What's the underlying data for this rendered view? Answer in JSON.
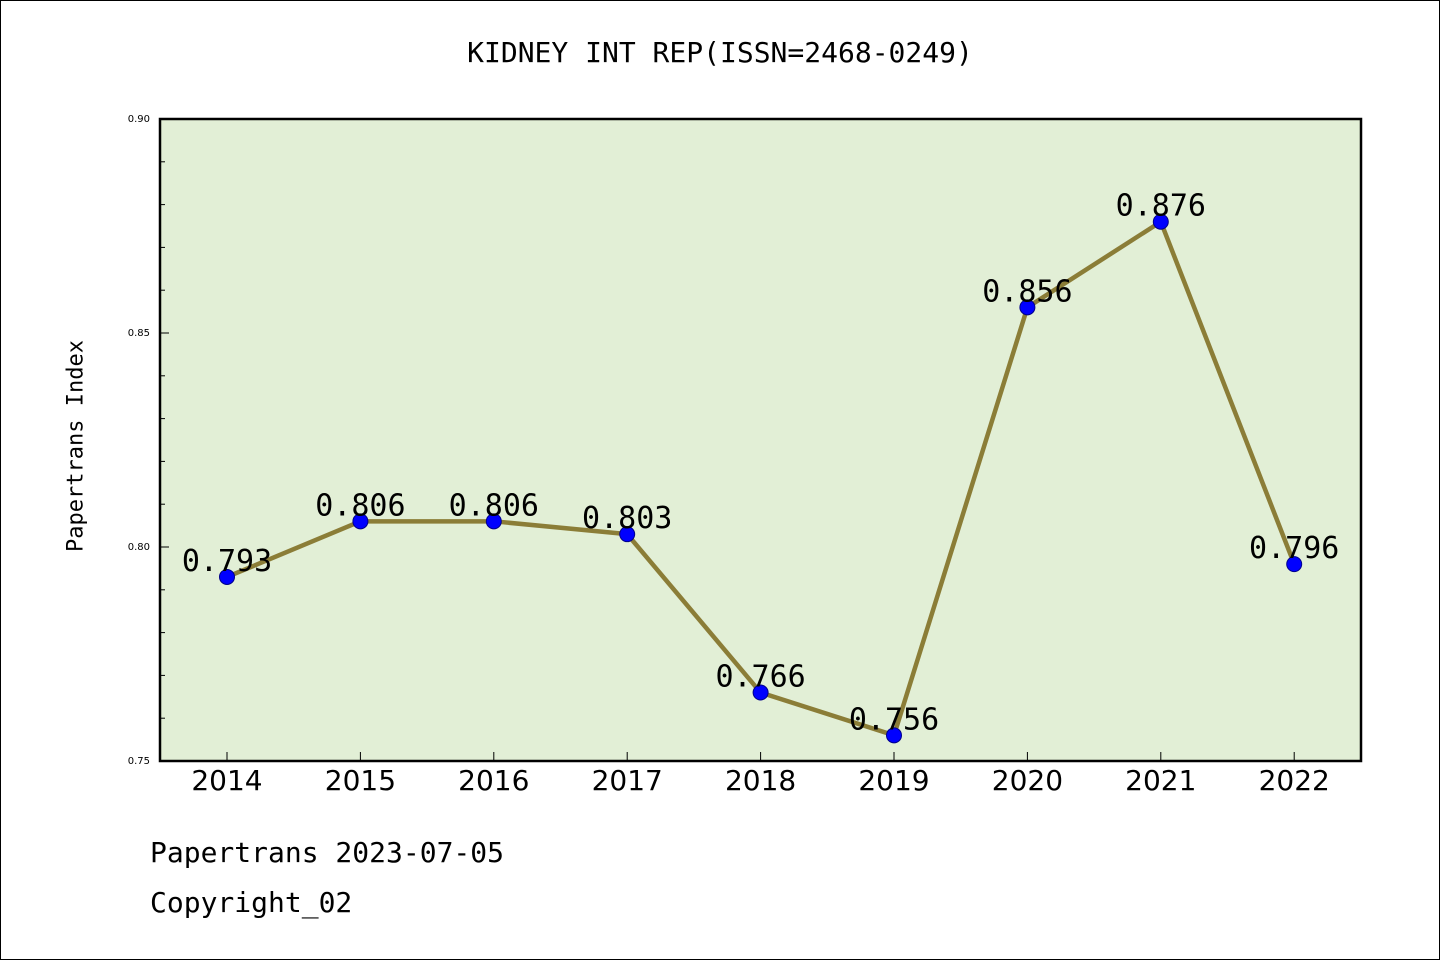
{
  "chart_data": {
    "type": "line",
    "title": "KIDNEY INT REP(ISSN=2468-0249)",
    "xlabel": "",
    "ylabel": "Papertrans Index",
    "categories": [
      "2014",
      "2015",
      "2016",
      "2017",
      "2018",
      "2019",
      "2020",
      "2021",
      "2022"
    ],
    "values": [
      0.793,
      0.806,
      0.806,
      0.803,
      0.766,
      0.756,
      0.856,
      0.876,
      0.796
    ],
    "data_labels": [
      "0.793",
      "0.806",
      "0.806",
      "0.803",
      "0.766",
      "0.756",
      "0.856",
      "0.876",
      "0.796"
    ],
    "ylim": [
      0.75,
      0.9
    ],
    "yticks": [
      "0.75",
      "0.80",
      "0.85",
      "0.90"
    ],
    "grid": false,
    "colors": {
      "line": "#8b7d37",
      "marker": "#0000ff",
      "plot_background": "#e2efd6"
    }
  },
  "footer": {
    "line1": "Papertrans 2023-07-05",
    "line2": "Copyright_02"
  }
}
